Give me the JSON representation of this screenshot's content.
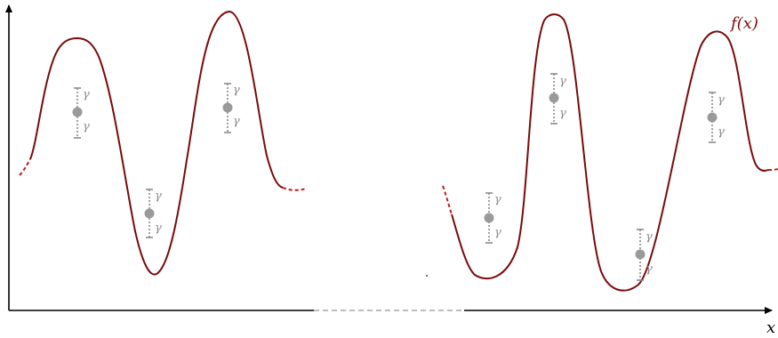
{
  "labels": {
    "function": "f(x)",
    "x_axis": "x",
    "gamma": "γ"
  },
  "colors": {
    "curve": "#7b0a0a",
    "curve_dashed": "#c0171b",
    "axis": "#000000",
    "axis_gap": "#a6a6a6",
    "point": "#9a9a9a",
    "bar": "#8a8a8a"
  },
  "legend": {
    "error_bar_symbol": "γ"
  }
}
